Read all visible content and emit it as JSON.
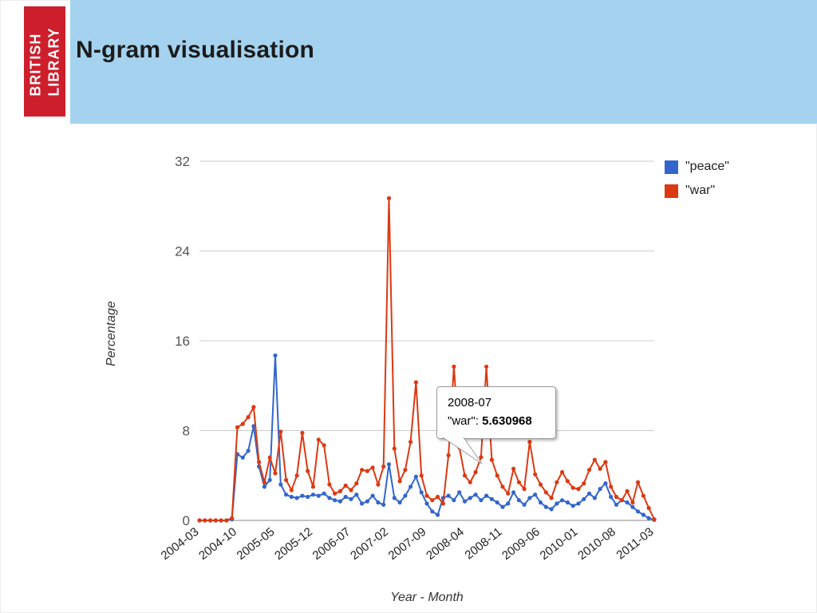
{
  "header": {
    "title": "N-gram visualisation",
    "logo": {
      "line1": "BRITISH",
      "line2": "LIBRARY"
    },
    "colors": {
      "band": "#a5d3ef",
      "logo_bg": "#cd1e2c",
      "logo_text": "#ffffff"
    }
  },
  "chart_data": {
    "type": "line",
    "title": "",
    "xlabel": "Year - Month",
    "ylabel": "Percentage",
    "ylim": [
      0,
      32
    ],
    "y_ticks": [
      0,
      8,
      16,
      24,
      32
    ],
    "grid": "horizontal",
    "legend_position": "right",
    "x_tick_every": 7,
    "x_tick_labels": [
      "2004-03",
      "2004-10",
      "2005-05",
      "2005-12",
      "2006-07",
      "2007-02",
      "2007-09",
      "2008-04",
      "2008-11",
      "2009-06",
      "2010-01",
      "2010-08",
      "2011-03"
    ],
    "x": [
      "2004-03",
      "2004-04",
      "2004-05",
      "2004-06",
      "2004-07",
      "2004-08",
      "2004-09",
      "2004-10",
      "2004-11",
      "2004-12",
      "2005-01",
      "2005-02",
      "2005-03",
      "2005-04",
      "2005-05",
      "2005-06",
      "2005-07",
      "2005-08",
      "2005-09",
      "2005-10",
      "2005-11",
      "2005-12",
      "2006-01",
      "2006-02",
      "2006-03",
      "2006-04",
      "2006-05",
      "2006-06",
      "2006-07",
      "2006-08",
      "2006-09",
      "2006-10",
      "2006-11",
      "2006-12",
      "2007-01",
      "2007-02",
      "2007-03",
      "2007-04",
      "2007-05",
      "2007-06",
      "2007-07",
      "2007-08",
      "2007-09",
      "2007-10",
      "2007-11",
      "2007-12",
      "2008-01",
      "2008-02",
      "2008-03",
      "2008-04",
      "2008-05",
      "2008-06",
      "2008-07",
      "2008-08",
      "2008-09",
      "2008-10",
      "2008-11",
      "2008-12",
      "2009-01",
      "2009-02",
      "2009-03",
      "2009-04",
      "2009-05",
      "2009-06",
      "2009-07",
      "2009-08",
      "2009-09",
      "2009-10",
      "2009-11",
      "2009-12",
      "2010-01",
      "2010-02",
      "2010-03",
      "2010-04",
      "2010-05",
      "2010-06",
      "2010-07",
      "2010-08",
      "2010-09",
      "2010-10",
      "2010-11",
      "2010-12",
      "2011-01",
      "2011-02",
      "2011-03"
    ],
    "series": [
      {
        "key": "peace",
        "name": "\"peace\"",
        "color": "#3366cc",
        "values": [
          0,
          0,
          0,
          0,
          0,
          0,
          0.1,
          5.9,
          5.6,
          6.2,
          8.4,
          4.8,
          3.0,
          3.6,
          14.7,
          3.2,
          2.3,
          2.1,
          2.0,
          2.2,
          2.1,
          2.3,
          2.2,
          2.4,
          2.0,
          1.8,
          1.7,
          2.1,
          1.9,
          2.3,
          1.5,
          1.7,
          2.2,
          1.6,
          1.4,
          5.0,
          2.0,
          1.6,
          2.2,
          3.0,
          3.9,
          2.5,
          1.5,
          0.8,
          0.5,
          2.0,
          2.2,
          1.8,
          2.5,
          1.7,
          2.0,
          2.3,
          1.8,
          2.2,
          1.9,
          1.6,
          1.2,
          1.5,
          2.5,
          1.8,
          1.4,
          2.0,
          2.3,
          1.6,
          1.2,
          1.0,
          1.5,
          1.8,
          1.6,
          1.3,
          1.5,
          1.9,
          2.4,
          2.0,
          2.8,
          3.3,
          2.1,
          1.4,
          1.8,
          1.6,
          1.2,
          0.8,
          0.5,
          0.2,
          0.05
        ]
      },
      {
        "key": "war",
        "name": "\"war\"",
        "color": "#dc3912",
        "values": [
          0,
          0,
          0,
          0,
          0,
          0,
          0.2,
          8.3,
          8.6,
          9.2,
          10.1,
          5.2,
          3.4,
          5.6,
          4.2,
          7.9,
          3.6,
          2.7,
          4.0,
          7.8,
          4.4,
          3.0,
          7.2,
          6.7,
          3.2,
          2.4,
          2.6,
          3.1,
          2.7,
          3.3,
          4.5,
          4.4,
          4.7,
          3.2,
          4.8,
          28.7,
          6.4,
          3.5,
          4.5,
          7.0,
          12.3,
          4.0,
          2.2,
          1.8,
          2.1,
          1.5,
          5.8,
          13.7,
          6.5,
          4.0,
          3.4,
          4.3,
          5.630968,
          13.7,
          5.4,
          4.0,
          3.0,
          2.4,
          4.6,
          3.4,
          2.8,
          7.0,
          4.1,
          3.2,
          2.5,
          2.0,
          3.4,
          4.3,
          3.5,
          2.9,
          2.8,
          3.3,
          4.5,
          5.4,
          4.6,
          5.2,
          3.0,
          2.1,
          1.8,
          2.6,
          1.6,
          3.4,
          2.2,
          1.1,
          0.1
        ]
      }
    ],
    "tooltip": {
      "title": "2008-07",
      "series_name": "\"war\"",
      "sep": ": ",
      "value": "5.630968"
    }
  }
}
